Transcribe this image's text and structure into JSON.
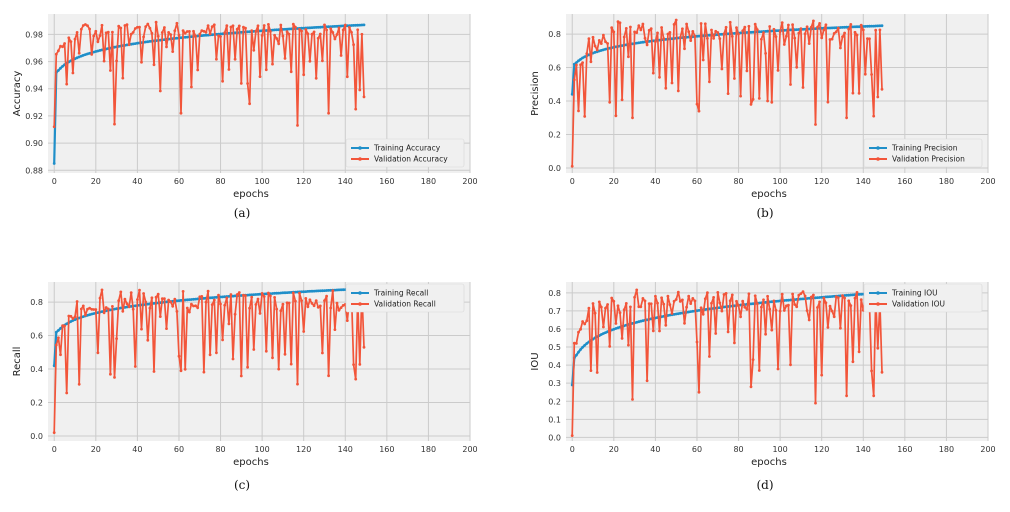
{
  "colors": {
    "training": "#1f8fc9",
    "validation": "#f2553a",
    "plot_background": "#f0f0f0",
    "grid": "#cbcbcb"
  },
  "chart_data": [
    {
      "id": "a",
      "type": "line",
      "caption": "(a)",
      "xlabel": "epochs",
      "ylabel": "Accuracy",
      "xlim": [
        -3,
        200
      ],
      "ylim": [
        0.878,
        0.995
      ],
      "xticks": [
        0,
        20,
        40,
        60,
        80,
        100,
        120,
        140,
        160,
        180,
        200
      ],
      "yticks": [
        0.88,
        0.9,
        0.92,
        0.94,
        0.96,
        0.98
      ],
      "ytick_labels": [
        "0.88",
        "0.90",
        "0.92",
        "0.94",
        "0.96",
        "0.98"
      ],
      "grid": true,
      "legend_position": "lower-right",
      "series": [
        {
          "name": "Training Accuracy",
          "kind": "training",
          "start": 0.885,
          "second": 0.952,
          "end": 0.987
        },
        {
          "name": "Validation Accuracy",
          "kind": "validation",
          "low": 0.912,
          "high": 0.99,
          "dips": [
            [
              29,
              0.914
            ],
            [
              61,
              0.922
            ],
            [
              94,
              0.929
            ],
            [
              117,
              0.913
            ],
            [
              132,
              0.922
            ],
            [
              145,
              0.925
            ],
            [
              149,
              0.934
            ]
          ]
        }
      ]
    },
    {
      "id": "b",
      "type": "line",
      "caption": "(b)",
      "xlabel": "epochs",
      "ylabel": "Precision",
      "xlim": [
        -3,
        200
      ],
      "ylim": [
        -0.03,
        0.92
      ],
      "xticks": [
        0,
        20,
        40,
        60,
        80,
        100,
        120,
        140,
        160,
        180,
        200
      ],
      "yticks": [
        0.0,
        0.2,
        0.4,
        0.6,
        0.8
      ],
      "ytick_labels": [
        "0.0",
        "0.2",
        "0.4",
        "0.6",
        "0.8"
      ],
      "grid": true,
      "legend_position": "lower-right",
      "series": [
        {
          "name": "Training Precision",
          "kind": "training",
          "start": 0.44,
          "second": 0.62,
          "end": 0.85
        },
        {
          "name": "Validation Precision",
          "kind": "validation",
          "low": 0.01,
          "high": 0.89,
          "dips": [
            [
              29,
              0.3
            ],
            [
              61,
              0.34
            ],
            [
              86,
              0.38
            ],
            [
              94,
              0.4
            ],
            [
              117,
              0.26
            ],
            [
              132,
              0.3
            ],
            [
              145,
              0.31
            ],
            [
              149,
              0.47
            ]
          ]
        }
      ]
    },
    {
      "id": "c",
      "type": "line",
      "caption": "(c)",
      "xlabel": "epochs",
      "ylabel": "Recall",
      "xlim": [
        -3,
        200
      ],
      "ylim": [
        -0.03,
        0.92
      ],
      "xticks": [
        0,
        20,
        40,
        60,
        80,
        100,
        120,
        140,
        160,
        180,
        200
      ],
      "yticks": [
        0.0,
        0.2,
        0.4,
        0.6,
        0.8
      ],
      "ytick_labels": [
        "0.0",
        "0.2",
        "0.4",
        "0.6",
        "0.8"
      ],
      "grid": true,
      "legend_position": "upper-right",
      "series": [
        {
          "name": "Training Recall",
          "kind": "training",
          "start": 0.42,
          "second": 0.62,
          "end": 0.88
        },
        {
          "name": "Validation Recall",
          "kind": "validation",
          "low": 0.02,
          "high": 0.88,
          "dips": [
            [
              29,
              0.35
            ],
            [
              61,
              0.39
            ],
            [
              86,
              0.46
            ],
            [
              117,
              0.31
            ],
            [
              132,
              0.36
            ],
            [
              145,
              0.34
            ],
            [
              149,
              0.53
            ]
          ]
        }
      ]
    },
    {
      "id": "d",
      "type": "line",
      "caption": "(d)",
      "xlabel": "epochs",
      "ylabel": "IOU",
      "xlim": [
        -3,
        200
      ],
      "ylim": [
        -0.02,
        0.86
      ],
      "xticks": [
        0,
        20,
        40,
        60,
        80,
        100,
        120,
        140,
        160,
        180,
        200
      ],
      "yticks": [
        0.0,
        0.1,
        0.2,
        0.3,
        0.4,
        0.5,
        0.6,
        0.7,
        0.8
      ],
      "ytick_labels": [
        "0.0",
        "0.1",
        "0.2",
        "0.3",
        "0.4",
        "0.5",
        "0.6",
        "0.7",
        "0.8"
      ],
      "grid": true,
      "legend_position": "upper-right",
      "series": [
        {
          "name": "Training IOU",
          "kind": "training",
          "start": 0.29,
          "second": 0.44,
          "end": 0.8
        },
        {
          "name": "Validation IOU",
          "kind": "validation",
          "low": 0.01,
          "high": 0.82,
          "dips": [
            [
              29,
              0.21
            ],
            [
              61,
              0.25
            ],
            [
              86,
              0.28
            ],
            [
              117,
              0.19
            ],
            [
              132,
              0.23
            ],
            [
              145,
              0.23
            ],
            [
              149,
              0.36
            ]
          ]
        }
      ]
    }
  ]
}
